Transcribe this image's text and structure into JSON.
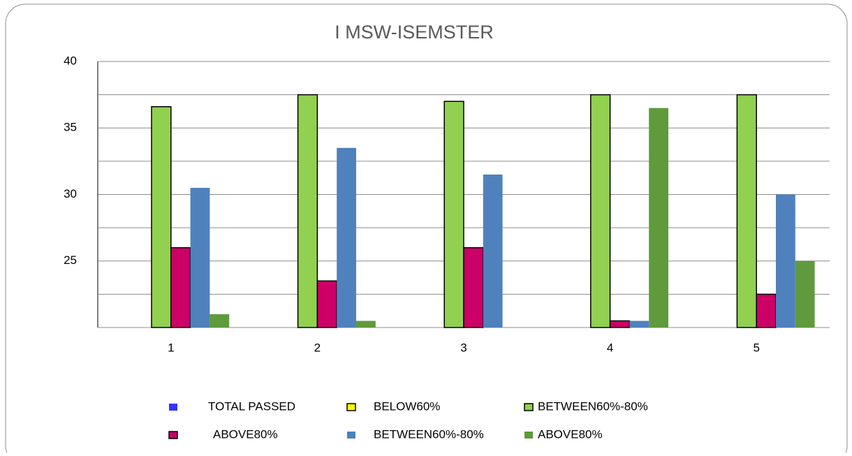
{
  "chart_data": {
    "type": "bar",
    "title": "I MSW-ISEMSTER",
    "categories": [
      "1",
      "2",
      "3",
      "4",
      "5"
    ],
    "series": [
      {
        "name": "TOTAL PASSED",
        "color": "#3333ff",
        "outline": false,
        "values": [
          null,
          null,
          null,
          null,
          null
        ]
      },
      {
        "name": "BELOW60%",
        "color": "#ffff00",
        "outline": true,
        "values": [
          null,
          null,
          null,
          null,
          null
        ]
      },
      {
        "name": "BETWEEN60%-80%",
        "color": "#92d050",
        "outline": true,
        "values": [
          36.6,
          37.5,
          37,
          37.5,
          37.5
        ]
      },
      {
        "name": "ABOVE80%",
        "color": "#cc0066",
        "outline": true,
        "values": [
          26,
          23.5,
          26,
          20.5,
          22.5
        ]
      },
      {
        "name": "BETWEEN60%-80%",
        "color": "#4f81bd",
        "outline": false,
        "values": [
          30.5,
          33.5,
          31.5,
          20.5,
          30
        ]
      },
      {
        "name": "ABOVE80%",
        "color": "#5f9a3c",
        "outline": false,
        "values": [
          21,
          20.5,
          null,
          36.5,
          25
        ]
      }
    ],
    "ylim": [
      20,
      40
    ],
    "yticks": [
      25,
      30,
      35,
      40
    ],
    "minor_yticks": [
      20,
      22.5,
      27.5,
      32.5,
      37.5
    ],
    "grid": true
  }
}
